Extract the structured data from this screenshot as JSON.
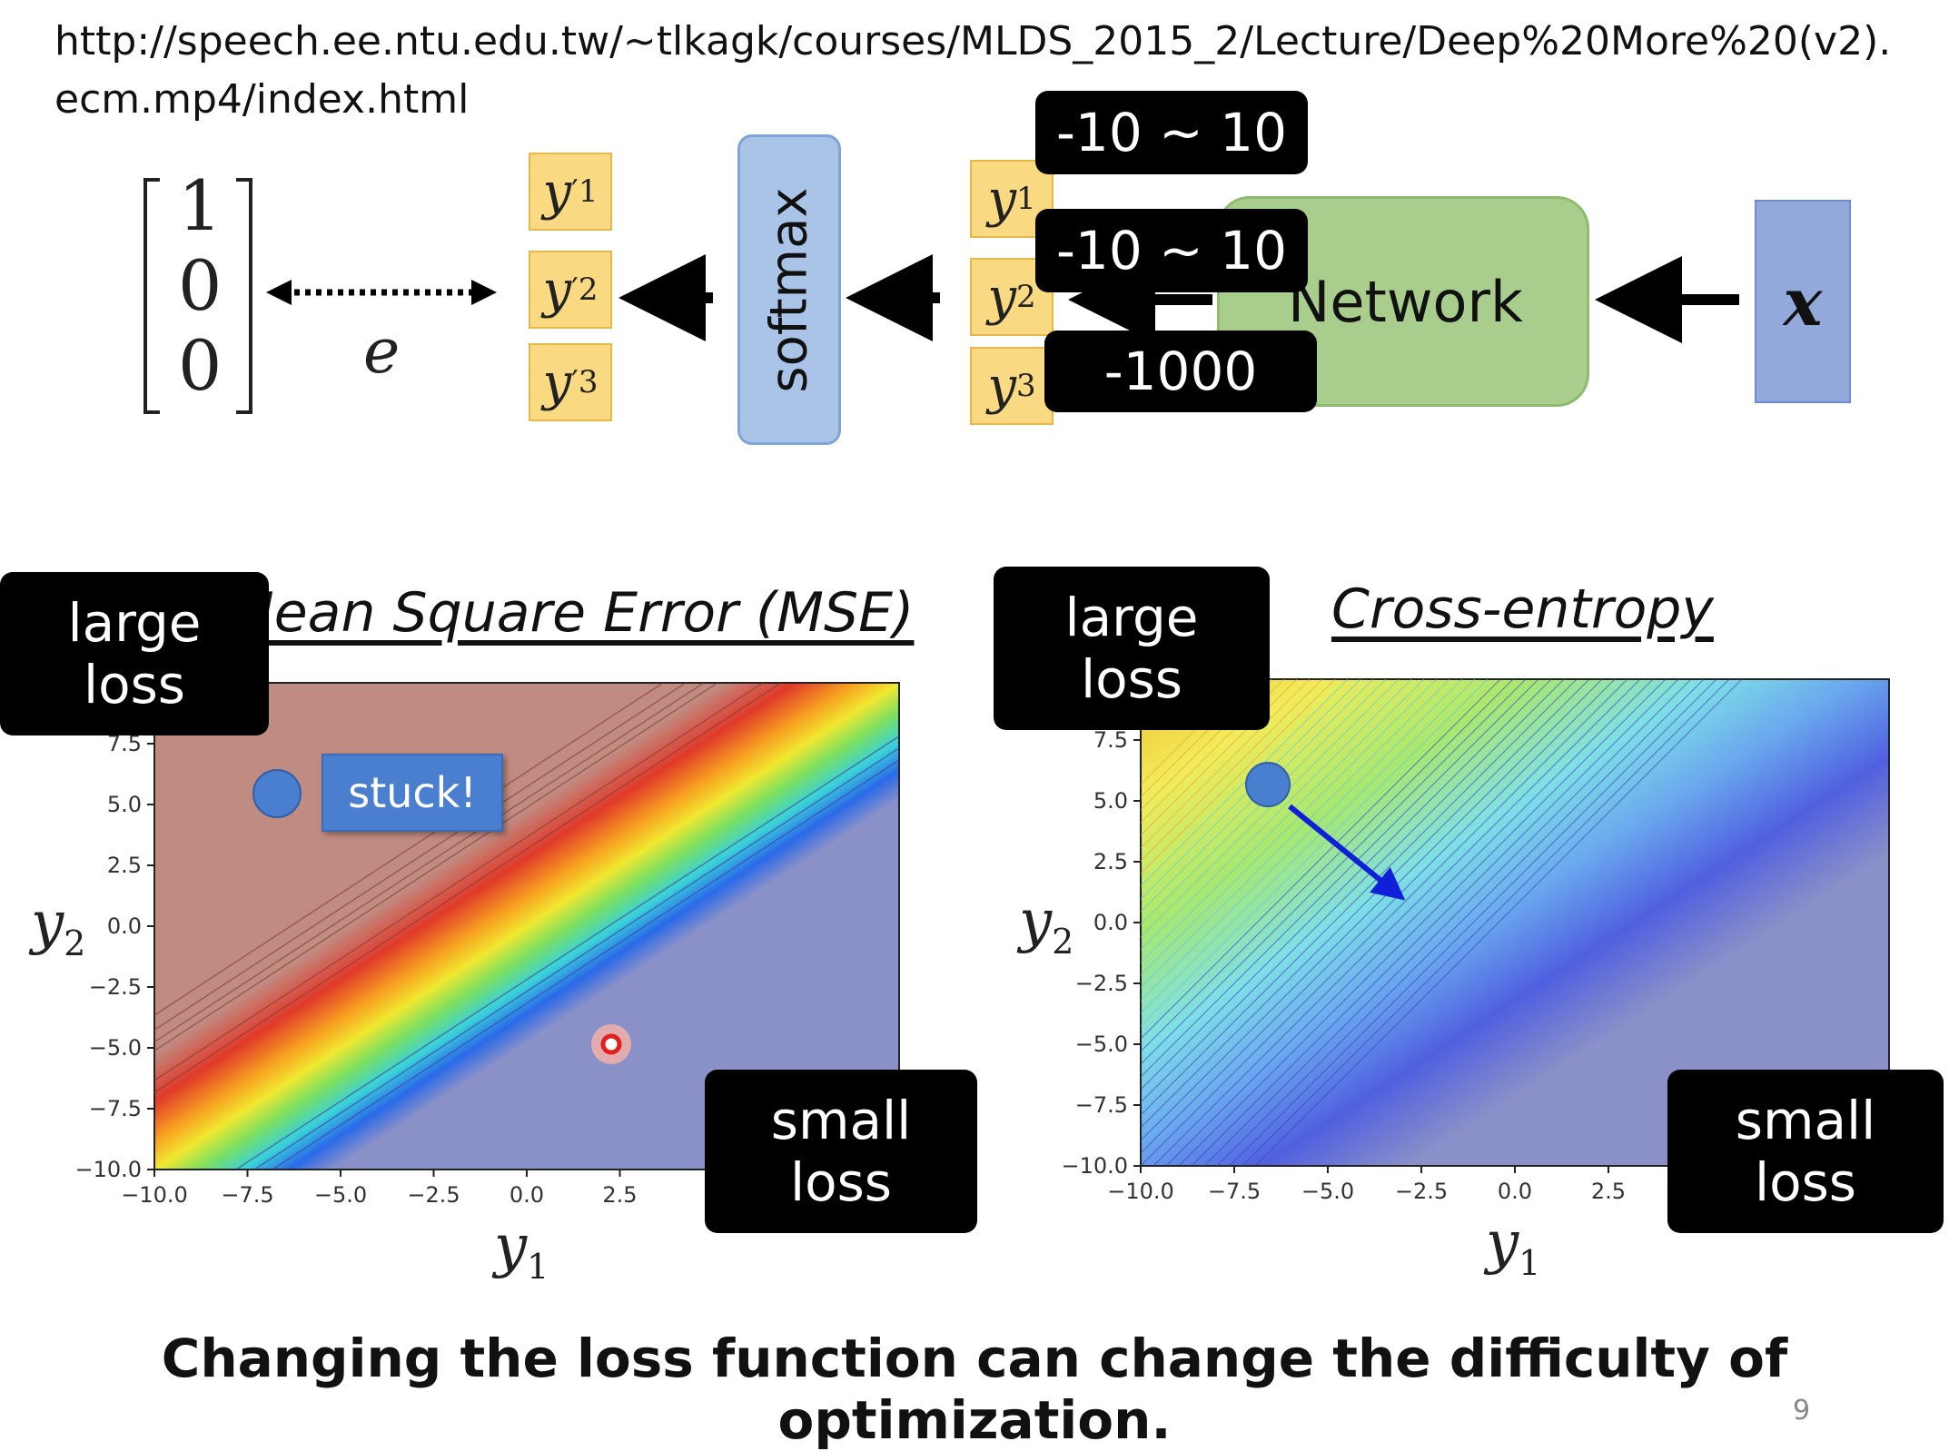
{
  "url": "http://speech.ee.ntu.edu.tw/~tlkagk/courses/MLDS_2015_2/Lecture/Deep%20More%20(v2).ecm.mp4/index.html",
  "diagram": {
    "target_vector": [
      "1",
      "0",
      "0"
    ],
    "error_label": "e",
    "outputs": [
      {
        "base": "y",
        "sup": "′",
        "sub": "1"
      },
      {
        "base": "y",
        "sup": "′",
        "sub": "2"
      },
      {
        "base": "y",
        "sup": "′",
        "sub": "3"
      }
    ],
    "softmax_label": "softmax",
    "logits": [
      {
        "base": "y",
        "sub": "1"
      },
      {
        "base": "y",
        "sub": "2"
      },
      {
        "base": "y",
        "sub": "3"
      }
    ],
    "network_label": "Network",
    "input_label": "x",
    "ranges": [
      "-10 ~ 10",
      "-10 ~ 10",
      "-1000"
    ]
  },
  "plots": [
    {
      "title": "Mean Square Error (MSE)",
      "xlabel_base": "y",
      "xlabel_sub": "1",
      "ylabel_base": "y",
      "ylabel_sub": "2",
      "x_ticks": [
        "−10.0",
        "−7.5",
        "−5.0",
        "−2.5",
        "0.0",
        "2.5"
      ],
      "y_ticks": [
        "7.5",
        "5.0",
        "2.5",
        "0.0",
        "−2.5",
        "−5.0",
        "−7.5",
        "−10.0"
      ],
      "large_loss": [
        "large",
        "loss"
      ],
      "small_loss": [
        "small",
        "loss"
      ],
      "stuck_label": "stuck!"
    },
    {
      "title": "Cross-entropy",
      "xlabel_base": "y",
      "xlabel_sub": "1",
      "ylabel_base": "y",
      "ylabel_sub": "2",
      "x_ticks": [
        "−10.0",
        "−7.5",
        "−5.0",
        "−2.5",
        "0.0",
        "2.5"
      ],
      "y_ticks": [
        "7.5",
        "5.0",
        "2.5",
        "0.0",
        "−2.5",
        "−5.0",
        "−7.5",
        "−10.0"
      ],
      "large_loss": [
        "large",
        "loss"
      ],
      "small_loss": [
        "small",
        "loss"
      ]
    }
  ],
  "caption": "Changing the loss function can change the difficulty of optimization.",
  "page_number": "9",
  "colors": {
    "y_box": "#fad983",
    "softmax_box": "#a9c4e6",
    "network_box": "#a9cd8d",
    "input_box": "#93a9dc",
    "mse_high_region": "#c08c82",
    "low_region": "#8a90c8",
    "point": "#4a7fcf",
    "arrow": "#1020d8"
  }
}
